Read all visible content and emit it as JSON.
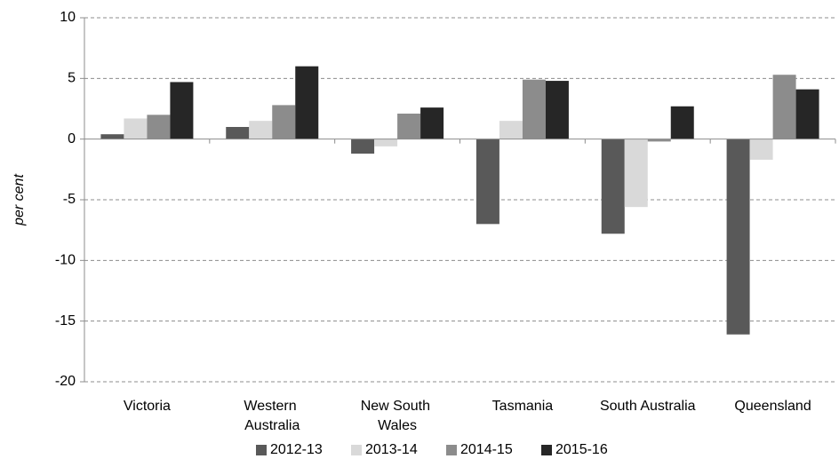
{
  "chart_data": {
    "type": "bar",
    "y_label": "per cent",
    "categories": [
      "Victoria",
      "Western Australia",
      "New South Wales",
      "Tasmania",
      "South Australia",
      "Queensland"
    ],
    "series": [
      {
        "name": "2012-13",
        "color": "#595959",
        "values": [
          0.4,
          1.0,
          -1.2,
          -7.0,
          -7.8,
          -16.1
        ]
      },
      {
        "name": "2013-14",
        "color": "#d9d9d9",
        "values": [
          1.7,
          1.5,
          -0.6,
          1.5,
          -5.6,
          -1.7
        ]
      },
      {
        "name": "2014-15",
        "color": "#8c8c8c",
        "values": [
          2.0,
          2.8,
          2.1,
          4.9,
          -0.2,
          5.3
        ]
      },
      {
        "name": "2015-16",
        "color": "#262626",
        "values": [
          4.7,
          6.0,
          2.6,
          4.8,
          2.7,
          4.1
        ]
      }
    ],
    "ylim": [
      -20,
      10
    ],
    "yticks": [
      -20,
      -15,
      -10,
      -5,
      0,
      5,
      10
    ],
    "grid": true,
    "legend": "bottom"
  }
}
